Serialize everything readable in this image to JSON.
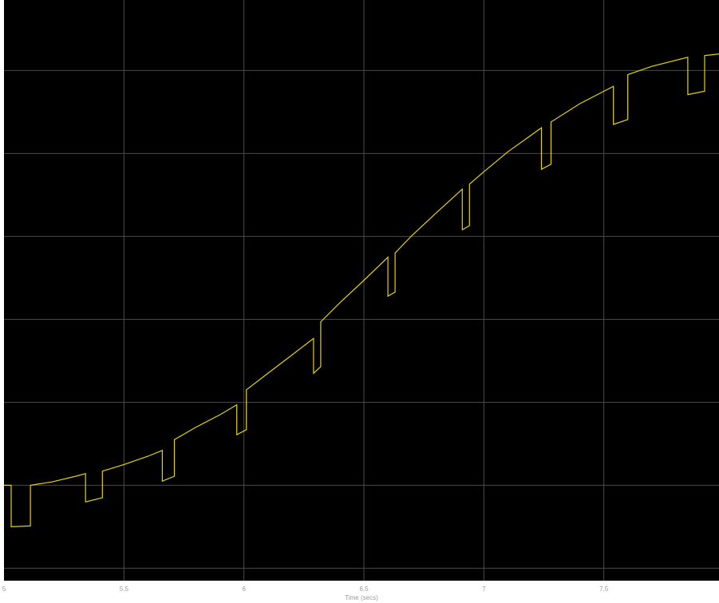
{
  "chart_data": {
    "type": "line",
    "xlabel": "Time (secs)",
    "ylabel": "",
    "xlim": [
      5,
      7.98
    ],
    "ylim": [
      0,
      7
    ],
    "grid": true,
    "x_ticks": [
      5,
      5.5,
      6,
      6.5,
      7,
      7.5
    ],
    "x_tick_labels": [
      "5",
      "5.5",
      "6",
      "6.5",
      "7",
      "7.5"
    ],
    "y_gridlines": [
      0.15,
      1.15,
      2.15,
      3.15,
      4.15,
      5.15,
      6.15
    ],
    "series": [
      {
        "line_color": "#e6d200",
        "points": [
          [
            5.0,
            1.15
          ],
          [
            5.03,
            1.15
          ],
          [
            5.03,
            0.65
          ],
          [
            5.11,
            0.66
          ],
          [
            5.11,
            1.15
          ],
          [
            5.2,
            1.19
          ],
          [
            5.3,
            1.26
          ],
          [
            5.34,
            1.29
          ],
          [
            5.34,
            0.95
          ],
          [
            5.41,
            1.0
          ],
          [
            5.41,
            1.32
          ],
          [
            5.5,
            1.4
          ],
          [
            5.6,
            1.5
          ],
          [
            5.66,
            1.57
          ],
          [
            5.66,
            1.2
          ],
          [
            5.71,
            1.26
          ],
          [
            5.71,
            1.7
          ],
          [
            5.8,
            1.85
          ],
          [
            5.9,
            2.0
          ],
          [
            5.97,
            2.12
          ],
          [
            5.97,
            1.76
          ],
          [
            6.01,
            1.82
          ],
          [
            6.01,
            2.3
          ],
          [
            6.1,
            2.5
          ],
          [
            6.2,
            2.72
          ],
          [
            6.29,
            2.92
          ],
          [
            6.29,
            2.5
          ],
          [
            6.32,
            2.58
          ],
          [
            6.32,
            3.12
          ],
          [
            6.4,
            3.35
          ],
          [
            6.5,
            3.62
          ],
          [
            6.6,
            3.9
          ],
          [
            6.6,
            3.43
          ],
          [
            6.63,
            3.48
          ],
          [
            6.63,
            3.95
          ],
          [
            6.7,
            4.16
          ],
          [
            6.8,
            4.43
          ],
          [
            6.91,
            4.72
          ],
          [
            6.91,
            4.23
          ],
          [
            6.94,
            4.28
          ],
          [
            6.94,
            4.78
          ],
          [
            7.0,
            4.93
          ],
          [
            7.1,
            5.17
          ],
          [
            7.24,
            5.46
          ],
          [
            7.24,
            4.96
          ],
          [
            7.28,
            5.02
          ],
          [
            7.28,
            5.53
          ],
          [
            7.4,
            5.75
          ],
          [
            7.5,
            5.9
          ],
          [
            7.54,
            5.96
          ],
          [
            7.54,
            5.5
          ],
          [
            7.6,
            5.56
          ],
          [
            7.6,
            6.1
          ],
          [
            7.7,
            6.2
          ],
          [
            7.85,
            6.31
          ],
          [
            7.85,
            5.86
          ],
          [
            7.92,
            5.9
          ],
          [
            7.92,
            6.33
          ],
          [
            7.98,
            6.35
          ]
        ]
      }
    ]
  }
}
